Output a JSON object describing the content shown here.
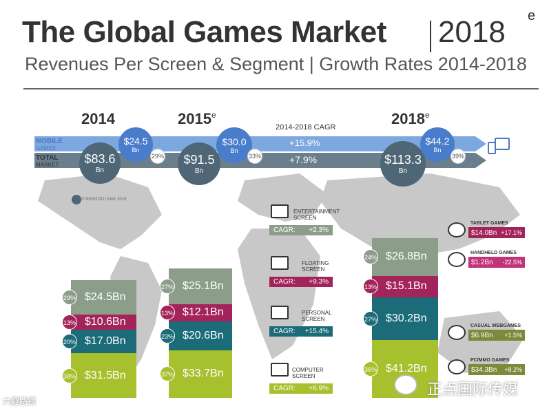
{
  "header": {
    "title": "The Global Games Market",
    "year": "2018",
    "year_sup": "e",
    "subtitle": "Revenues Per Screen & Segment | Growth Rates 2014-2018"
  },
  "legend": {
    "mobile": "MOBILE",
    "games": "GAMES",
    "total": "TOTAL",
    "market": "MARKET",
    "cagr_title": "2014-2018 CAGR",
    "mobile_cagr": "+15.9%",
    "total_cagr": "+7.9%"
  },
  "credit": "© NEWZOO | MAY 2015",
  "colors": {
    "entertainment": "#8c9e8a",
    "tablet": "#a3245a",
    "handheld": "#a3245a",
    "personal": "#1b6b78",
    "casual": "#a7c02d",
    "pcmmo": "#a7c02d",
    "mobile_band": "#7da7df",
    "total_band": "#6b7e8b"
  },
  "chart_data": {
    "type": "bar",
    "stacked": true,
    "categories": [
      "2014",
      "2015",
      "2018"
    ],
    "category_sup": [
      "",
      "e",
      "e"
    ],
    "totals": [
      {
        "value": "$83.6",
        "unit": "Bn"
      },
      {
        "value": "$91.5",
        "unit": "Bn"
      },
      {
        "value": "$113.3",
        "unit": "Bn"
      }
    ],
    "mobile": [
      {
        "value": "$24.5",
        "unit": "Bn",
        "share": "29%"
      },
      {
        "value": "$30.0",
        "unit": "Bn",
        "share": "33%"
      },
      {
        "value": "$44.2",
        "unit": "Bn",
        "share": "39%"
      }
    ],
    "series": [
      {
        "key": "entertainment",
        "color": "#8c9e8a",
        "values": [
          24.5,
          25.1,
          26.8
        ],
        "labels": [
          "$24.5Bn",
          "$25.1Bn",
          "$26.8Bn"
        ],
        "shares": [
          "29%",
          "27%",
          "24%"
        ]
      },
      {
        "key": "floating",
        "color": "#a3245a",
        "values": [
          10.6,
          12.1,
          15.1
        ],
        "labels": [
          "$10.6Bn",
          "$12.1Bn",
          "$15.1Bn"
        ],
        "shares": [
          "13%",
          "13%",
          "13%"
        ]
      },
      {
        "key": "personal",
        "color": "#1b6b78",
        "values": [
          17.0,
          20.6,
          30.2
        ],
        "labels": [
          "$17.0Bn",
          "$20.6Bn",
          "$30.2Bn"
        ],
        "shares": [
          "20%",
          "23%",
          "27%"
        ]
      },
      {
        "key": "computer",
        "color": "#a7c02d",
        "values": [
          31.5,
          33.7,
          41.2
        ],
        "labels": [
          "$31.5Bn",
          "$33.7Bn",
          "$41.2Bn"
        ],
        "shares": [
          "38%",
          "37%",
          "36%"
        ]
      }
    ],
    "screens": [
      {
        "name1": "ENTERTAINMENT",
        "name2": "SCREEN",
        "cagr_label": "CAGR:",
        "cagr": "+2.3%",
        "color": "#8c9e8a"
      },
      {
        "name1": "FLOATING",
        "name2": "SCREEN",
        "cagr_label": "CAGR:",
        "cagr": "+9.3%",
        "color": "#a3245a"
      },
      {
        "name1": "PERSONAL",
        "name2": "SCREEN",
        "cagr_label": "CAGR:",
        "cagr": "+15.4%",
        "color": "#1b6b78"
      },
      {
        "name1": "COMPUTER",
        "name2": "SCREEN",
        "cagr_label": "CAGR:",
        "cagr": "+6.9%",
        "color": "#a7c02d"
      }
    ],
    "segments_2018": [
      {
        "name": "TABLET GAMES",
        "value": "$14.0Bn",
        "growth": "+17.1%",
        "color": "#a3245a"
      },
      {
        "name": "HANDHELD GAMES",
        "value": "$1.2Bn",
        "growth": "-22.5%",
        "color": "#c0347a"
      },
      {
        "name": "CASUAL WEBGAMES",
        "value": "$6.9Bn",
        "growth": "+1.5%",
        "color": "#7a8b3a"
      },
      {
        "name": "PC/MMO GAMES",
        "value": "$34.3Bn",
        "growth": "+8.2%",
        "color": "#7a8b3a"
      }
    ]
  },
  "watermarks": {
    "right": "正点国际传媒",
    "left": "六趣路镜"
  }
}
